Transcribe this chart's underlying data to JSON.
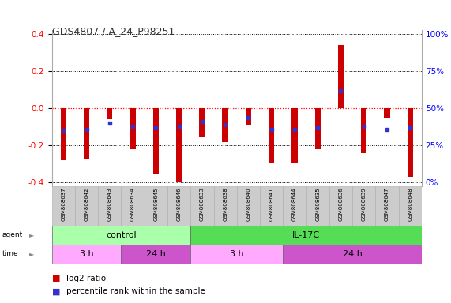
{
  "title": "GDS4807 / A_24_P98251",
  "samples": [
    "GSM808637",
    "GSM808642",
    "GSM808643",
    "GSM808634",
    "GSM808645",
    "GSM808646",
    "GSM808633",
    "GSM808638",
    "GSM808640",
    "GSM808641",
    "GSM808644",
    "GSM808635",
    "GSM808636",
    "GSM808639",
    "GSM808647",
    "GSM808648"
  ],
  "log2_ratio": [
    -0.28,
    -0.27,
    -0.06,
    -0.22,
    -0.35,
    -0.4,
    -0.15,
    -0.18,
    -0.09,
    -0.29,
    -0.29,
    -0.22,
    0.34,
    -0.24,
    -0.05,
    -0.37
  ],
  "percentile_rank": [
    35,
    36,
    40,
    38,
    37,
    38,
    41,
    39,
    44,
    36,
    36,
    37,
    62,
    38,
    36,
    37
  ],
  "bar_color": "#cc0000",
  "dot_color": "#3333cc",
  "agent_groups": [
    {
      "label": "control",
      "start": 0,
      "end": 6,
      "color": "#aaffaa"
    },
    {
      "label": "IL-17C",
      "start": 6,
      "end": 16,
      "color": "#55dd55"
    }
  ],
  "time_groups": [
    {
      "label": "3 h",
      "start": 0,
      "end": 3,
      "color": "#ffaaff"
    },
    {
      "label": "24 h",
      "start": 3,
      "end": 6,
      "color": "#cc55cc"
    },
    {
      "label": "3 h",
      "start": 6,
      "end": 10,
      "color": "#ffaaff"
    },
    {
      "label": "24 h",
      "start": 10,
      "end": 16,
      "color": "#cc55cc"
    }
  ],
  "ylim": [
    -0.42,
    0.42
  ],
  "yticks_left": [
    -0.4,
    -0.2,
    0.0,
    0.2,
    0.4
  ],
  "yticks_right_val": [
    0,
    25,
    50,
    75,
    100
  ],
  "yticks_right_labels": [
    "0%",
    "25%",
    "50%",
    "75%",
    "100%"
  ],
  "bar_width": 0.25,
  "bg_color": "#ffffff",
  "plot_bg": "#ffffff",
  "grid_color_h": "#000000",
  "grid_color_zero": "#ff0000"
}
